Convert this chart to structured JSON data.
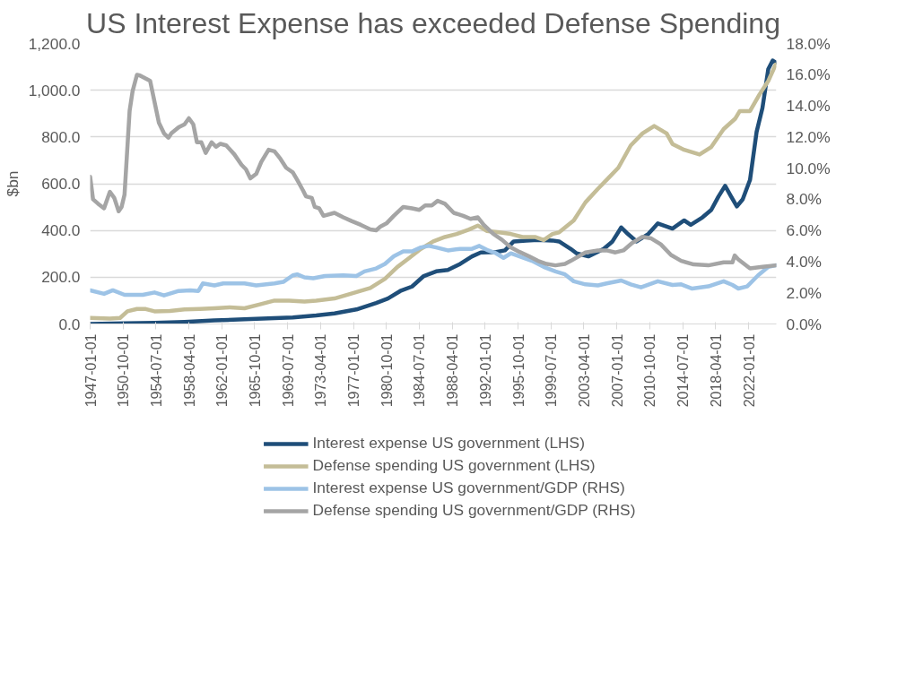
{
  "chart_data": {
    "type": "line",
    "title": "US Interest Expense has exceeded Defense Spending",
    "ylabel": "$bn",
    "xlim": [
      "1947-01",
      "2025-03"
    ],
    "xticks": [
      "1947-01-01",
      "1950-10-01",
      "1954-07-01",
      "1958-04-01",
      "1962-01-01",
      "1965-10-01",
      "1969-07-01",
      "1973-04-01",
      "1977-01-01",
      "1980-10-01",
      "1984-07-01",
      "1988-04-01",
      "1992-01-01",
      "1995-10-01",
      "1999-07-01",
      "2003-04-01",
      "2007-01-01",
      "2010-10-01",
      "2014-07-01",
      "2018-04-01",
      "2022-01-01"
    ],
    "ylim": [
      0,
      1200
    ],
    "yticks": [
      {
        "value": 0,
        "label": "0.0"
      },
      {
        "value": 200,
        "label": "200.0"
      },
      {
        "value": 400,
        "label": "400.0"
      },
      {
        "value": 600,
        "label": "600.0"
      },
      {
        "value": 800,
        "label": "800.0"
      },
      {
        "value": 1000,
        "label": "1,000.0"
      },
      {
        "value": 1200,
        "label": "1,200.0"
      }
    ],
    "y2lim": [
      0,
      18
    ],
    "y2ticks": [
      {
        "value": 0,
        "label": "0.0%"
      },
      {
        "value": 2,
        "label": "2.0%"
      },
      {
        "value": 4,
        "label": "4.0%"
      },
      {
        "value": 6,
        "label": "6.0%"
      },
      {
        "value": 8,
        "label": "8.0%"
      },
      {
        "value": 10,
        "label": "10.0%"
      },
      {
        "value": 12,
        "label": "12.0%"
      },
      {
        "value": 14,
        "label": "14.0%"
      },
      {
        "value": 16,
        "label": "16.0%"
      },
      {
        "value": 18,
        "label": "18.0%"
      }
    ],
    "grid": "y",
    "legend": "bottom",
    "series": [
      {
        "name": "Interest expense US government (LHS)",
        "color": "#1f4e79",
        "x": [
          "1947-01",
          "1950-12",
          "1954-05",
          "1957-10",
          "1961-03",
          "1964-08",
          "1968-01",
          "1970-02",
          "1972-10",
          "1974-11",
          "1977-05",
          "1979-08",
          "1980-12",
          "1982-05",
          "1983-09",
          "1985-01",
          "1986-06",
          "1987-10",
          "1989-03",
          "1990-07",
          "1991-07",
          "1993-04",
          "1994-04",
          "1995-04",
          "1996-09",
          "1998-01",
          "1999-09",
          "2000-06",
          "2001-10",
          "2002-06",
          "2003-10",
          "2005-07",
          "2006-07",
          "2007-07",
          "2008-04",
          "2009-04",
          "2010-08",
          "2011-09",
          "2013-05",
          "2014-09",
          "2015-06",
          "2016-10",
          "2017-10",
          "2018-08",
          "2019-05",
          "2020-01",
          "2020-09",
          "2021-05",
          "2022-03",
          "2022-12",
          "2023-08",
          "2024-04",
          "2024-10",
          "2025-02"
        ],
        "values": [
          0,
          3,
          5,
          9,
          15,
          20,
          25,
          28,
          36,
          45,
          62,
          90,
          109,
          141,
          160,
          205,
          225,
          231,
          257,
          289,
          306,
          308,
          315,
          353,
          357,
          359,
          357,
          353,
          321,
          302,
          289,
          321,
          353,
          413,
          385,
          353,
          385,
          430,
          408,
          443,
          424,
          456,
          488,
          546,
          591,
          546,
          503,
          533,
          616,
          822,
          924,
          1091,
          1127,
          1119
        ]
      },
      {
        "name": "Defense spending US government (LHS)",
        "color": "#c4bd97",
        "x": [
          "1947-01",
          "1949-04",
          "1950-06",
          "1951-04",
          "1952-05",
          "1953-05",
          "1954-05",
          "1956-02",
          "1957-10",
          "1959-07",
          "1961-03",
          "1962-12",
          "1964-08",
          "1966-04",
          "1968-01",
          "1969-09",
          "1971-06",
          "1972-10",
          "1974-11",
          "1976-11",
          "1978-12",
          "1980-08",
          "1982-01",
          "1983-05",
          "1984-09",
          "1986-02",
          "1987-06",
          "1988-10",
          "1990-03",
          "1991-03",
          "1992-03",
          "1993-08",
          "1994-12",
          "1996-04",
          "1997-09",
          "1998-09",
          "1999-09",
          "2000-06",
          "2002-02",
          "2003-06",
          "2004-11",
          "2006-03",
          "2007-03",
          "2008-08",
          "2009-12",
          "2011-04",
          "2012-09",
          "2013-05",
          "2014-09",
          "2016-06",
          "2017-10",
          "2019-03",
          "2020-07",
          "2021-01",
          "2022-03",
          "2023-04",
          "2024-04",
          "2025-02"
        ],
        "values": [
          26,
          23,
          26,
          54,
          64,
          64,
          54,
          56,
          62,
          64,
          67,
          71,
          67,
          83,
          100,
          100,
          96,
          100,
          109,
          131,
          154,
          193,
          244,
          282,
          321,
          353,
          372,
          385,
          404,
          421,
          398,
          392,
          385,
          372,
          372,
          359,
          385,
          392,
          443,
          520,
          578,
          629,
          668,
          764,
          815,
          847,
          815,
          770,
          745,
          725,
          757,
          834,
          879,
          911,
          911,
          982,
          1040,
          1110
        ]
      },
      {
        "name": "Interest expense US government/GDP (RHS)",
        "color": "#9dc3e6",
        "axis": "y2",
        "x": [
          "1947-01",
          "1948-08",
          "1949-08",
          "1950-12",
          "1953-01",
          "1954-05",
          "1955-06",
          "1957-02",
          "1958-06",
          "1959-05",
          "1959-11",
          "1961-03",
          "1962-03",
          "1964-08",
          "1965-12",
          "1968-01",
          "1969-01",
          "1970-02",
          "1970-08",
          "1971-06",
          "1972-06",
          "1973-10",
          "1975-11",
          "1977-05",
          "1978-04",
          "1979-08",
          "1980-08",
          "1981-08",
          "1982-09",
          "1983-09",
          "1984-09",
          "1985-08",
          "1986-06",
          "1987-10",
          "1989-03",
          "1990-07",
          "1991-05",
          "1992-05",
          "1993-04",
          "1994-02",
          "1994-12",
          "1995-12",
          "1997-05",
          "1998-09",
          "2000-01",
          "2001-02",
          "2002-02",
          "2003-06",
          "2004-11",
          "2005-11",
          "2007-07",
          "2008-08",
          "2009-10",
          "2011-09",
          "2013-05",
          "2014-05",
          "2015-08",
          "2017-06",
          "2019-03",
          "2020-03",
          "2020-11",
          "2021-11",
          "2023-02",
          "2024-04",
          "2025-02"
        ],
        "values": [
          2.16,
          1.93,
          2.16,
          1.87,
          1.87,
          2.02,
          1.83,
          2.12,
          2.16,
          2.12,
          2.6,
          2.47,
          2.6,
          2.6,
          2.47,
          2.6,
          2.7,
          3.12,
          3.18,
          2.99,
          2.93,
          3.08,
          3.12,
          3.08,
          3.37,
          3.56,
          3.85,
          4.34,
          4.66,
          4.66,
          4.91,
          5.01,
          4.91,
          4.72,
          4.82,
          4.82,
          5.01,
          4.72,
          4.53,
          4.24,
          4.53,
          4.34,
          4.05,
          3.66,
          3.37,
          3.18,
          2.74,
          2.54,
          2.47,
          2.6,
          2.79,
          2.54,
          2.35,
          2.74,
          2.5,
          2.54,
          2.27,
          2.41,
          2.74,
          2.5,
          2.27,
          2.41,
          3.12,
          3.66,
          3.76
        ]
      },
      {
        "name": "Defense spending US government/GDP (RHS)",
        "color": "#a5a5a5",
        "axis": "y2",
        "x": [
          "1947-01",
          "1947-05",
          "1947-12",
          "1948-08",
          "1949-04",
          "1949-10",
          "1950-04",
          "1950-08",
          "1950-12",
          "1951-07",
          "1951-11",
          "1952-05",
          "1952-09",
          "1953-07",
          "1953-11",
          "1954-05",
          "1954-11",
          "1955-06",
          "1955-12",
          "1956-04",
          "1957-02",
          "1957-10",
          "1958-04",
          "1958-10",
          "1959-03",
          "1959-09",
          "1960-03",
          "1960-11",
          "1961-05",
          "1961-11",
          "1962-07",
          "1963-06",
          "1964-04",
          "1964-10",
          "1965-04",
          "1965-12",
          "1966-07",
          "1967-05",
          "1968-01",
          "1968-09",
          "1969-05",
          "1970-02",
          "1970-08",
          "1971-04",
          "1971-08",
          "1972-04",
          "1972-08",
          "1973-02",
          "1973-08",
          "1974-11",
          "1975-11",
          "1976-11",
          "1977-11",
          "1978-12",
          "1979-08",
          "1980-02",
          "1980-10",
          "1981-08",
          "1982-09",
          "1983-09",
          "1984-07",
          "1985-03",
          "1985-12",
          "1986-08",
          "1987-06",
          "1988-06",
          "1989-07",
          "1990-05",
          "1991-03",
          "1991-11",
          "1992-12",
          "1993-12",
          "1994-12",
          "1995-12",
          "1997-01",
          "1998-01",
          "1999-01",
          "2000-01",
          "2001-02",
          "2001-10",
          "2003-06",
          "2004-11",
          "2005-11",
          "2006-11",
          "2007-10",
          "2008-10",
          "2009-12",
          "2010-12",
          "2012-01",
          "2013-03",
          "2014-05",
          "2015-10",
          "2017-06",
          "2019-03",
          "2020-03",
          "2020-06",
          "2020-11",
          "2022-03",
          "2023-08",
          "2025-02"
        ],
        "values": [
          9.44,
          8.0,
          7.71,
          7.42,
          8.48,
          8.09,
          7.23,
          7.51,
          8.29,
          13.68,
          14.93,
          15.99,
          15.95,
          15.7,
          15.6,
          14.26,
          12.91,
          12.23,
          11.95,
          12.23,
          12.62,
          12.81,
          13.2,
          12.81,
          11.66,
          11.66,
          10.98,
          11.66,
          11.37,
          11.56,
          11.46,
          10.89,
          10.21,
          9.92,
          9.34,
          9.63,
          10.4,
          11.18,
          11.08,
          10.6,
          10.02,
          9.73,
          9.25,
          8.57,
          8.19,
          8.09,
          7.51,
          7.42,
          6.94,
          7.13,
          6.84,
          6.59,
          6.36,
          6.07,
          6.01,
          6.26,
          6.45,
          6.94,
          7.51,
          7.42,
          7.32,
          7.61,
          7.61,
          7.9,
          7.71,
          7.13,
          6.94,
          6.74,
          6.84,
          6.36,
          5.78,
          5.4,
          4.91,
          4.62,
          4.34,
          4.05,
          3.85,
          3.76,
          3.85,
          4.05,
          4.59,
          4.72,
          4.72,
          4.59,
          4.72,
          5.2,
          5.59,
          5.49,
          5.11,
          4.43,
          4.05,
          3.82,
          3.76,
          3.95,
          3.95,
          4.39,
          4.14,
          3.56,
          3.66,
          3.76
        ]
      }
    ]
  }
}
